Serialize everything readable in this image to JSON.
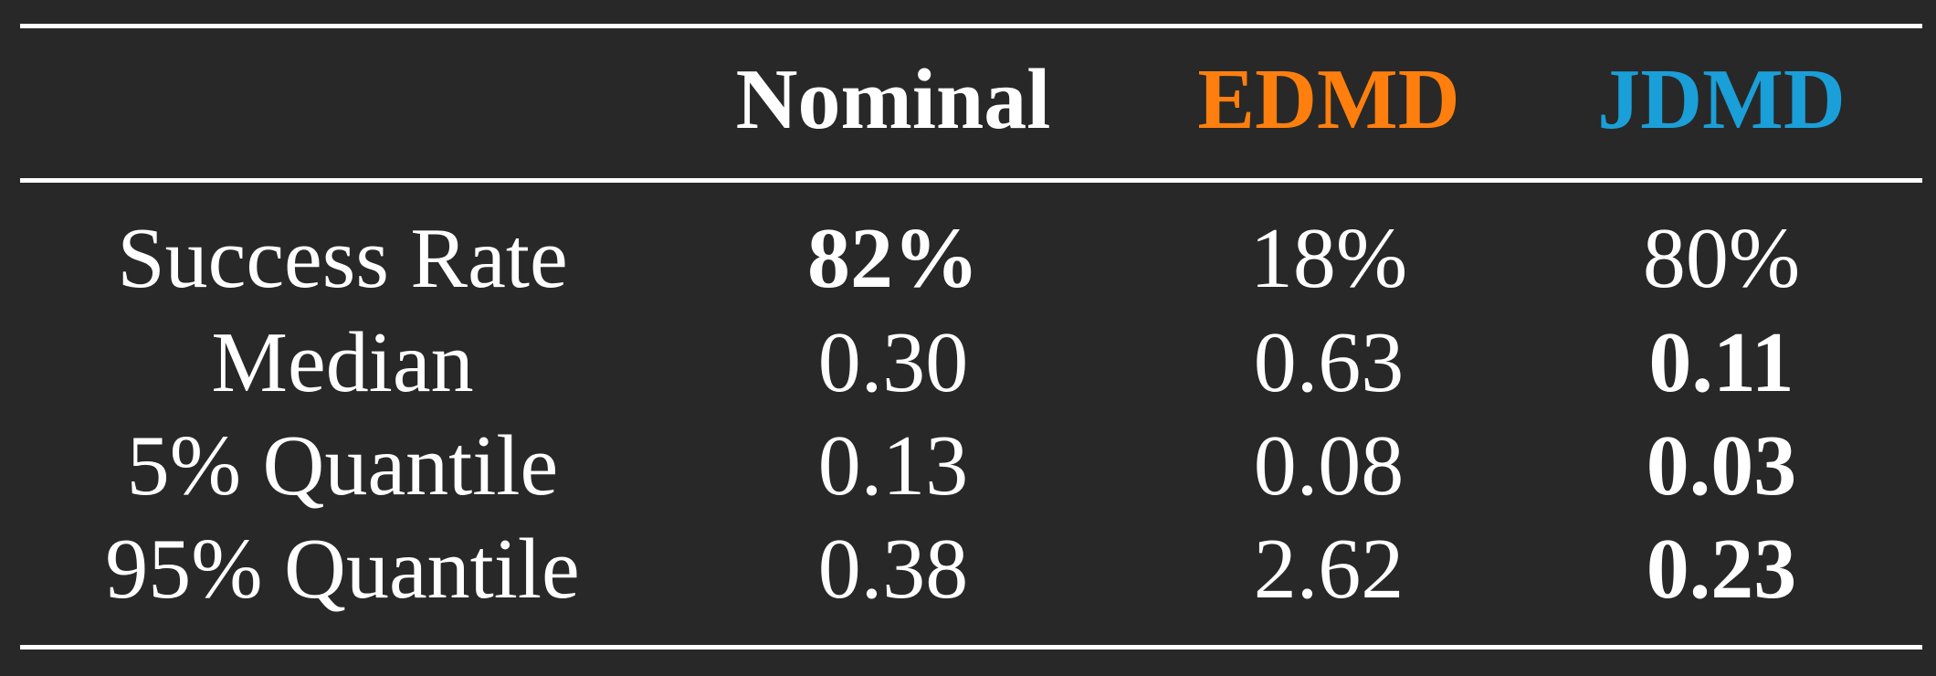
{
  "colors": {
    "background": "#282828",
    "text": "#ffffff",
    "edmd": "#ff7f0e",
    "jdmd": "#1a9fd8"
  },
  "table": {
    "headers": {
      "nominal": "Nominal",
      "edmd": "EDMD",
      "jdmd": "JDMD"
    },
    "rows": [
      {
        "label": "Success Rate",
        "nominal": "82%",
        "edmd": "18%",
        "jdmd": "80%",
        "best": "nominal"
      },
      {
        "label": "Median",
        "nominal": "0.30",
        "edmd": "0.63",
        "jdmd": "0.11",
        "best": "jdmd"
      },
      {
        "label": "5% Quantile",
        "nominal": "0.13",
        "edmd": "0.08",
        "jdmd": "0.03",
        "best": "jdmd"
      },
      {
        "label": "95% Quantile",
        "nominal": "0.38",
        "edmd": "2.62",
        "jdmd": "0.23",
        "best": "jdmd"
      }
    ]
  }
}
